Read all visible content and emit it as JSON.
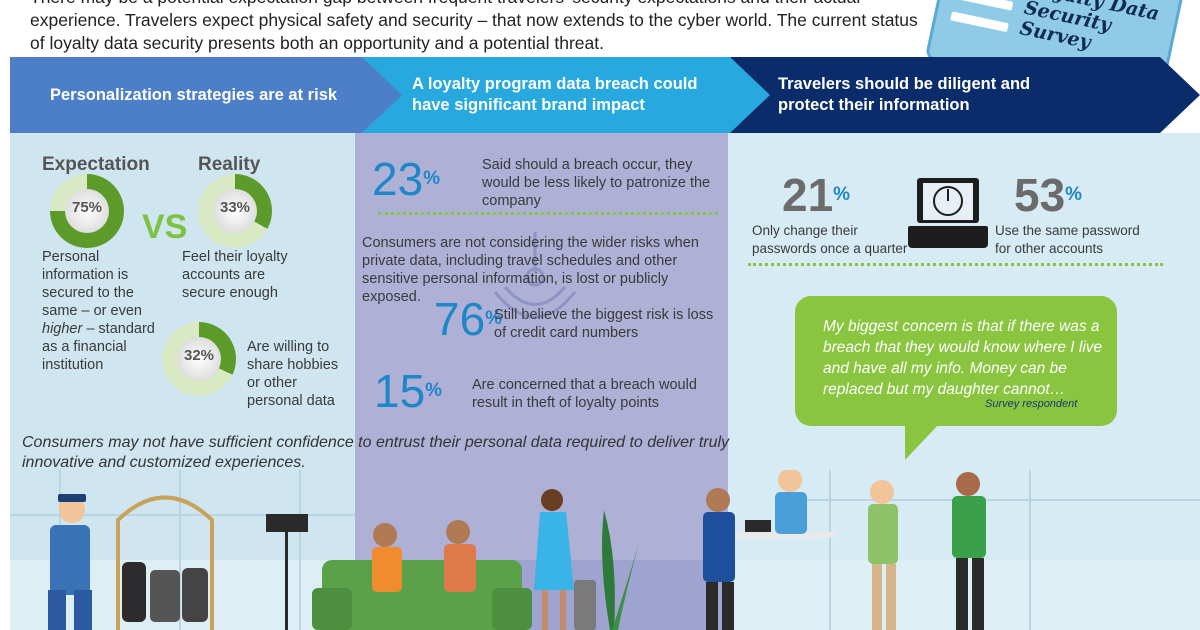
{
  "intro": "There may be a potential expectation gap between frequent travelers' security expectations and their actual experience. Travelers expect physical safety and security – that now extends to the cyber world. The current status of loyalty data security presents both an opportunity and a potential threat.",
  "badge": {
    "text": "Loyalty Data Security Survey"
  },
  "banners": [
    "Personalization strategies are at risk",
    "A loyalty program data breach could have significant brand impact",
    "Travelers should be diligent and protect their information"
  ],
  "panel1": {
    "expectation_label": "Expectation",
    "reality_label": "Reality",
    "vs": "VS",
    "donut_expectation": {
      "value": 75,
      "label": "75%"
    },
    "donut_reality": {
      "value": 33,
      "label": "33%"
    },
    "donut_share": {
      "value": 32,
      "label": "32%"
    },
    "expectation_text_1": "Personal information is secured to the same – or even ",
    "expectation_text_em": "higher",
    "expectation_text_2": " – standard as a financial institution",
    "reality_text": "Feel their loyalty accounts are secure enough",
    "share_text": "Are willing to share hobbies or other personal data"
  },
  "panel2": {
    "stat1": {
      "num": "23",
      "pct": "%",
      "text": "Said should a breach occur, they would be less likely to patronize the company"
    },
    "paragraph": "Consumers are not considering the wider risks when private data, including travel schedules and other sensitive personal information, is lost or publicly exposed.",
    "stat2": {
      "num": "76",
      "pct": "%",
      "text": "Still believe the biggest risk is loss of credit card numbers"
    },
    "stat3": {
      "num": "15",
      "pct": "%",
      "text": "Are concerned that a breach would result in theft of loyalty points"
    }
  },
  "panel3": {
    "stat1": {
      "num": "21",
      "pct": "%",
      "text": "Only change their passwords once a quarter"
    },
    "stat2": {
      "num": "53",
      "pct": "%",
      "text": "Use the same password for other accounts"
    },
    "quote": "My biggest concern is that if there was a breach that they would know where I live and have all my info. Money can be replaced but my daughter cannot…",
    "quote_source": "Survey respondent"
  },
  "conclusion": "Consumers may not have sufficient confidence to entrust their personal data required to deliver truly innovative and customized experiences.",
  "colors": {
    "green": "#8ac53f",
    "blue": "#1f86c8",
    "navy": "#0b2c6b",
    "mid_blue": "#27a9df",
    "panel_blue": "#4d7fc8"
  }
}
